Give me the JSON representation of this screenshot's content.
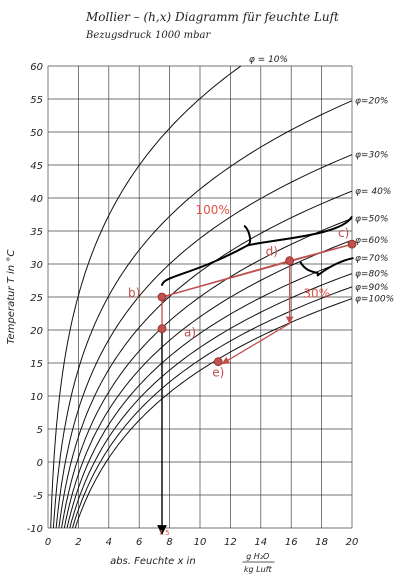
{
  "title": "Mollier – (h,x) Diagramm für feuchte Luft",
  "subtitle": "Bezugsdruck 1000 mbar",
  "chart_data": {
    "type": "line",
    "title": "Mollier – (h,x) Diagramm für feuchte Luft",
    "subtitle": "Bezugsdruck 1000 mbar",
    "xlabel": "abs. Feuchte x in",
    "xunit_num": "g H₂O",
    "xunit_den": "kg Luft",
    "ylabel": "Temperatur T in °C",
    "xlim": [
      0,
      20
    ],
    "ylim": [
      -10,
      60
    ],
    "xticks": [
      0,
      2,
      4,
      6,
      8,
      10,
      12,
      14,
      16,
      18,
      20
    ],
    "yticks": [
      -10,
      -5,
      0,
      5,
      10,
      15,
      20,
      25,
      30,
      35,
      40,
      45,
      50,
      55,
      60
    ],
    "grid": true,
    "series": [
      {
        "name": "φ=10%",
        "phi": 0.1,
        "label": "φ = 10%"
      },
      {
        "name": "φ=20%",
        "phi": 0.2,
        "label": "φ=20%"
      },
      {
        "name": "φ=30%",
        "phi": 0.3,
        "label": "φ=30%"
      },
      {
        "name": "φ=40%",
        "phi": 0.4,
        "label": "φ= 40%"
      },
      {
        "name": "φ=50%",
        "phi": 0.5,
        "label": "φ=50%"
      },
      {
        "name": "φ=60%",
        "phi": 0.6,
        "label": "φ=60%"
      },
      {
        "name": "φ=70%",
        "phi": 0.7,
        "label": "φ=70%"
      },
      {
        "name": "φ=80%",
        "phi": 0.8,
        "label": "φ=80%"
      },
      {
        "name": "φ=90%",
        "phi": 0.9,
        "label": "φ=90%"
      },
      {
        "name": "φ=100%",
        "phi": 1.0,
        "label": "φ=100%"
      }
    ],
    "points": [
      {
        "label": "a)",
        "x": 7.5,
        "y": 20.2
      },
      {
        "label": "b)",
        "x": 7.5,
        "y": 25
      },
      {
        "label": "c)",
        "x": 20,
        "y": 33
      },
      {
        "label": "d)",
        "x": 15.9,
        "y": 30.5
      },
      {
        "label": "e)",
        "x": 11.2,
        "y": 15.2
      }
    ],
    "annotations": {
      "x_marker": "7.5",
      "pct_100": "100%",
      "pct_30": "30%"
    }
  }
}
